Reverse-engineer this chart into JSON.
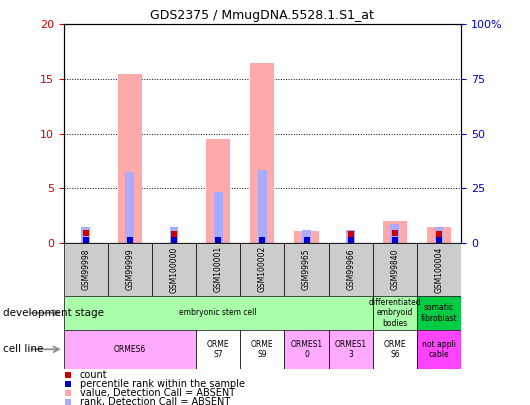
{
  "title": "GDS2375 / MmugDNA.5528.1.S1_at",
  "samples": [
    "GSM99998",
    "GSM99999",
    "GSM100000",
    "GSM100001",
    "GSM100002",
    "GSM99965",
    "GSM99966",
    "GSM99840",
    "GSM100004"
  ],
  "count_values": [
    0.9,
    0.2,
    0.8,
    0.2,
    0.2,
    0.2,
    0.8,
    0.9,
    0.8
  ],
  "percentile_values": [
    0.3,
    0.3,
    0.3,
    0.3,
    0.3,
    0.3,
    0.3,
    0.3,
    0.3
  ],
  "absent_value_bars": [
    0.0,
    15.5,
    0.0,
    9.5,
    16.5,
    1.1,
    0.0,
    2.0,
    1.5
  ],
  "absent_rank_bars": [
    1.5,
    6.5,
    1.5,
    4.7,
    6.7,
    1.2,
    1.2,
    1.7,
    1.5
  ],
  "count_color": "#cc0000",
  "percentile_color": "#0000cc",
  "absent_value_color": "#ffaaaa",
  "absent_rank_color": "#aaaaff",
  "ylim_left": [
    0,
    20
  ],
  "ylim_right": [
    0,
    100
  ],
  "yticks_left": [
    0,
    5,
    10,
    15,
    20
  ],
  "yticks_right": [
    0,
    25,
    50,
    75,
    100
  ],
  "ytick_labels_right": [
    "0",
    "25",
    "50",
    "75",
    "100%"
  ],
  "bar_width": 0.55,
  "rank_bar_width": 0.2,
  "count_marker_size": 4,
  "axis_label_color_left": "#cc0000",
  "axis_label_color_right": "#0000cc",
  "dev_stage_groups": [
    {
      "label": "embryonic stem cell",
      "start": 0,
      "end": 7,
      "color": "#aaffaa"
    },
    {
      "label": "differentiated\nembryoid\nbodies",
      "start": 7,
      "end": 8,
      "color": "#aaffaa"
    },
    {
      "label": "somatic\nfibroblast",
      "start": 8,
      "end": 9,
      "color": "#00cc44"
    }
  ],
  "cell_line_groups": [
    {
      "label": "ORMES6",
      "start": 0,
      "end": 3,
      "color": "#ffaaff"
    },
    {
      "label": "ORME\nS7",
      "start": 3,
      "end": 4,
      "color": "#ffffff"
    },
    {
      "label": "ORME\nS9",
      "start": 4,
      "end": 5,
      "color": "#ffffff"
    },
    {
      "label": "ORMES1\n0",
      "start": 5,
      "end": 6,
      "color": "#ffaaff"
    },
    {
      "label": "ORMES1\n3",
      "start": 6,
      "end": 7,
      "color": "#ffaaff"
    },
    {
      "label": "ORME\nS6",
      "start": 7,
      "end": 8,
      "color": "#ffffff"
    },
    {
      "label": "not appli\ncable",
      "start": 8,
      "end": 9,
      "color": "#ff44ff"
    }
  ],
  "sample_box_color": "#cccccc",
  "legend_items": [
    {
      "color": "#cc0000",
      "marker": "s",
      "label": "count"
    },
    {
      "color": "#0000cc",
      "marker": "s",
      "label": "percentile rank within the sample"
    },
    {
      "color": "#ffaaaa",
      "marker": "s",
      "label": "value, Detection Call = ABSENT"
    },
    {
      "color": "#aaaaff",
      "marker": "s",
      "label": "rank, Detection Call = ABSENT"
    }
  ]
}
